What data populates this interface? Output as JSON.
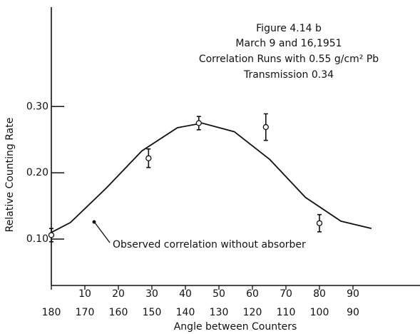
{
  "chart_data": {
    "type": "scatter",
    "annotations": [
      "Figure 4.14 b",
      "March 9 and 16,1951",
      "Correlation Runs with 0.55 g/cm² Pb",
      "Transmission  0.34"
    ],
    "ylabel": "Relative Counting Rate",
    "xlabel": "Angle between Counters",
    "xlim": [
      180,
      70
    ],
    "xticks": [
      180,
      170,
      160,
      150,
      140,
      130,
      120,
      110,
      100,
      90
    ],
    "x2lim": [
      0,
      110
    ],
    "x2ticks": [
      10,
      20,
      30,
      40,
      50,
      60,
      70,
      80,
      90
    ],
    "ylim": [
      0.03,
      0.45
    ],
    "yticks": [
      {
        "value": 0.1,
        "label": "0.10"
      },
      {
        "value": 0.2,
        "label": "0.20"
      },
      {
        "value": 0.3,
        "label": "0.30"
      }
    ],
    "series": [
      {
        "type": "scatter",
        "color": "#111111",
        "x": [
          180,
          151,
          136,
          116,
          100
        ],
        "values": [
          0.106,
          0.222,
          0.275,
          0.269,
          0.124
        ],
        "errors": [
          0.01,
          0.014,
          0.01,
          0.02,
          0.013
        ]
      },
      {
        "type": "line",
        "name": "Observed correlation without absorber",
        "color": "#111111",
        "x": [
          180,
          174.3,
          163.6,
          153,
          142.4,
          135,
          125.4,
          114.8,
          104.2,
          93.6,
          84.5
        ],
        "values": [
          0.11,
          0.125,
          0.177,
          0.233,
          0.268,
          0.275,
          0.262,
          0.22,
          0.163,
          0.127,
          0.116
        ]
      }
    ]
  }
}
